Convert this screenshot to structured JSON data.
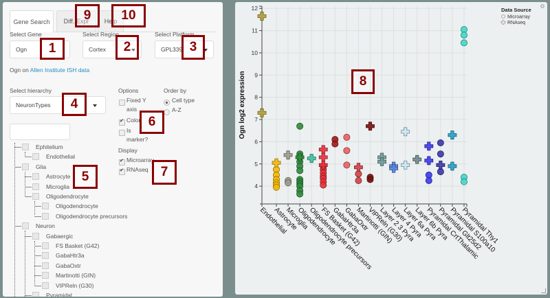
{
  "tabs": [
    {
      "label": "Gene Search",
      "active": true
    },
    {
      "label": "Diff. Expr",
      "active": false
    },
    {
      "label": "Help",
      "active": false
    }
  ],
  "gene": {
    "label": "Select Gene",
    "value": "Ogn"
  },
  "region": {
    "label": "Select Region",
    "value": "Cortex"
  },
  "platform": {
    "label": "Select Platform",
    "value": "GPL339"
  },
  "ish_link": {
    "prefix": "Ogn on ",
    "link": "Allen Institute ISH data"
  },
  "hierarchy": {
    "label": "Select hierarchy",
    "value": "NeuronTypes"
  },
  "tree_search": {
    "value": ""
  },
  "options": {
    "title": "Options",
    "fixed_y_line1": "Fixed Y",
    "fixed_y_line2": "axis",
    "fixed_y_checked": false,
    "color": "Color",
    "color_checked": true,
    "is_marker_line1": "Is",
    "is_marker_line2": "marker?",
    "is_marker_checked": false
  },
  "order_by": {
    "title": "Order by",
    "items": [
      "Cell type",
      "A-Z"
    ],
    "selected": "Cell type"
  },
  "display": {
    "title": "Display",
    "items": [
      {
        "label": "Microarray",
        "checked": true
      },
      {
        "label": "RNAseq",
        "checked": true
      }
    ]
  },
  "tree": [
    {
      "label": "Ephitelium",
      "level": 1
    },
    {
      "label": "Endothelial",
      "level": 2
    },
    {
      "label": "Glia",
      "level": 1
    },
    {
      "label": "Astrocyte",
      "level": 2
    },
    {
      "label": "Microglia",
      "level": 2
    },
    {
      "label": "Oligodendrocyte",
      "level": 2
    },
    {
      "label": "Oligodendrocyte",
      "level": 3
    },
    {
      "label": "Oligodendrocyte precursors",
      "level": 3
    },
    {
      "label": "Neuron",
      "level": 1
    },
    {
      "label": "Gabaergic",
      "level": 2
    },
    {
      "label": "FS Basket (G42)",
      "level": 3
    },
    {
      "label": "GabaHtr3a",
      "level": 3
    },
    {
      "label": "GabaOxtr",
      "level": 3
    },
    {
      "label": "Martinotti (GIN)",
      "level": 3
    },
    {
      "label": "VIPReln (G30)",
      "level": 3
    },
    {
      "label": "Pyramidal",
      "level": 2
    }
  ],
  "annotations": [
    "1",
    "2",
    "3",
    "4",
    "5",
    "6",
    "7",
    "8",
    "9",
    "10"
  ],
  "chart_data": {
    "type": "scatter",
    "title": "",
    "ylabel": "Ogn log2 expression",
    "xlabel": "",
    "ylim": [
      3.2,
      12.1
    ],
    "yticks": [
      4,
      5,
      6,
      7,
      8,
      9,
      10,
      11,
      12
    ],
    "grid": true,
    "legend": {
      "title": "Data Source",
      "position": "top-right",
      "entries": [
        {
          "name": "Microarray",
          "marker": "circle"
        },
        {
          "name": "RNAseq",
          "marker": "cross"
        }
      ]
    },
    "categories": [
      "Endothelial",
      "Astrocyte",
      "Microglia",
      "Oligodendrocyte",
      "Oligodendrocyte precursors",
      "FS Basket (G42)",
      "GabaHtr3a",
      "GabaOxtr",
      "Martinotti (GIN)",
      "VIPReln (G30)",
      "Layer 2 3 Pyra",
      "Layer 4 Pyra",
      "Layer 6a Pyra",
      "Layer 6b Pyra",
      "Pyramidal CrtThalamic",
      "Pyramidal Glt25d2",
      "Pyramidal S100a10",
      "Pyramidal Thy1"
    ],
    "colors": [
      "#b5a036",
      "#f5b800",
      "#9e9a8a",
      "#2e8b3c",
      "#3cbfa0",
      "#e8303a",
      "#a01818",
      "#e86060",
      "#d04048",
      "#7a1010",
      "#6f9a9a",
      "#5a86e0",
      "#c8e8f5",
      "#6a8a8a",
      "#3a3af0",
      "#3838a8",
      "#20a0c8",
      "#40d8c8"
    ],
    "series": [
      {
        "name": "Microarray",
        "marker": "circle",
        "points": [
          [
            1,
            4.75
          ],
          [
            1,
            4.5
          ],
          [
            1,
            4.3
          ],
          [
            1,
            4.15
          ],
          [
            1,
            4.05
          ],
          [
            1,
            3.95
          ],
          [
            2,
            4.25
          ],
          [
            2,
            4.15
          ],
          [
            3,
            6.7
          ],
          [
            3,
            5.45
          ],
          [
            3,
            5.3
          ],
          [
            3,
            5.1
          ],
          [
            3,
            4.9
          ],
          [
            3,
            4.7
          ],
          [
            3,
            4.3
          ],
          [
            3,
            4.2
          ],
          [
            3,
            4.1
          ],
          [
            3,
            4.0
          ],
          [
            3,
            3.8
          ],
          [
            3,
            3.65
          ],
          [
            5,
            4.9
          ],
          [
            5,
            4.75
          ],
          [
            5,
            4.6
          ],
          [
            5,
            4.45
          ],
          [
            5,
            4.35
          ],
          [
            5,
            4.2
          ],
          [
            5,
            4.05
          ],
          [
            6,
            6.1
          ],
          [
            6,
            5.9
          ],
          [
            7,
            6.2
          ],
          [
            7,
            5.6
          ],
          [
            7,
            4.95
          ],
          [
            8,
            4.55
          ],
          [
            8,
            4.25
          ],
          [
            9,
            4.4
          ],
          [
            9,
            4.3
          ],
          [
            14,
            4.5
          ],
          [
            14,
            4.25
          ],
          [
            15,
            5.95
          ],
          [
            15,
            5.45
          ],
          [
            15,
            4.65
          ],
          [
            17,
            11.05
          ],
          [
            17,
            10.8
          ],
          [
            17,
            10.45
          ],
          [
            17,
            4.4
          ],
          [
            17,
            4.2
          ]
        ]
      },
      {
        "name": "RNAseq",
        "marker": "cross",
        "points": [
          [
            0,
            11.65
          ],
          [
            0,
            7.3
          ],
          [
            1,
            5.05
          ],
          [
            2,
            5.4
          ],
          [
            3,
            5.3
          ],
          [
            4,
            5.25
          ],
          [
            5,
            5.65
          ],
          [
            5,
            5.3
          ],
          [
            5,
            4.95
          ],
          [
            8,
            4.85
          ],
          [
            9,
            6.7
          ],
          [
            10,
            5.3
          ],
          [
            10,
            5.1
          ],
          [
            11,
            4.9
          ],
          [
            11,
            4.8
          ],
          [
            12,
            6.45
          ],
          [
            12,
            4.95
          ],
          [
            13,
            5.2
          ],
          [
            14,
            5.8
          ],
          [
            14,
            5.15
          ],
          [
            15,
            4.95
          ],
          [
            16,
            6.3
          ],
          [
            16,
            4.9
          ]
        ]
      }
    ]
  }
}
